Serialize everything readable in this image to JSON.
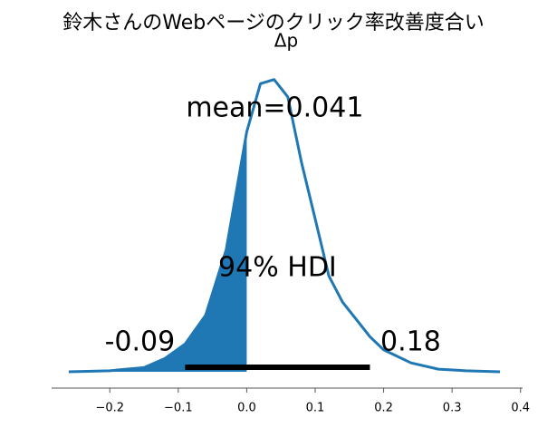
{
  "chart_data": {
    "type": "density",
    "title": "鈴木さんのWebページのクリック率改善度合い",
    "subtitle": "Δp",
    "x": [
      -0.26,
      -0.2,
      -0.15,
      -0.12,
      -0.09,
      -0.06,
      -0.03,
      0.0,
      0.02,
      0.04,
      0.06,
      0.08,
      0.1,
      0.12,
      0.14,
      0.16,
      0.18,
      0.2,
      0.24,
      0.28,
      0.32,
      0.37
    ],
    "values": [
      0,
      0.02,
      0.08,
      0.25,
      0.53,
      1.08,
      2.33,
      4.58,
      5.5,
      5.58,
      5.25,
      4.0,
      2.92,
      1.83,
      1.33,
      1.0,
      0.67,
      0.42,
      0.17,
      0.05,
      0.02,
      0
    ],
    "color": "#1f77b4",
    "shade_to": 0,
    "mean": {
      "value": 0.041,
      "label": "mean=0.041"
    },
    "hdi": {
      "label": "94% HDI",
      "low": -0.09,
      "high": 0.18
    },
    "xlim": [
      -0.285,
      0.403
    ],
    "ylim": [
      0,
      5.8
    ],
    "xticks": [
      {
        "value": -0.2,
        "label": "−0.2"
      },
      {
        "value": -0.1,
        "label": "−0.1"
      },
      {
        "value": 0,
        "label": "0.0"
      },
      0.1,
      0.2,
      0.3,
      0.4
    ]
  }
}
